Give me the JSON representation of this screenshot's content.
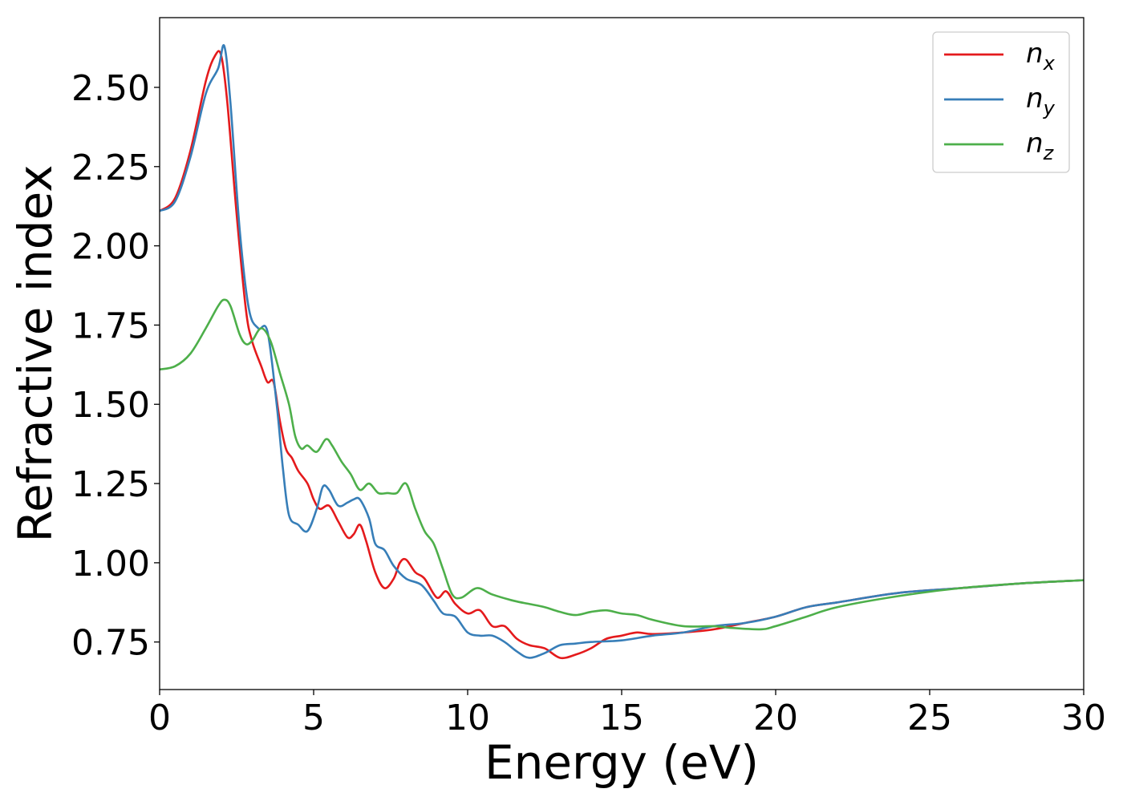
{
  "chart_data": {
    "type": "line",
    "title": "",
    "xlabel": "Energy (eV)",
    "ylabel": "Refractive index",
    "xlim": [
      0,
      30
    ],
    "ylim": [
      0.6,
      2.72
    ],
    "x_ticks": [
      0,
      5,
      10,
      15,
      20,
      25,
      30
    ],
    "y_ticks": [
      0.75,
      1.0,
      1.25,
      1.5,
      1.75,
      2.0,
      2.25,
      2.5
    ],
    "x_tick_labels": [
      "0",
      "5",
      "10",
      "15",
      "20",
      "25",
      "30"
    ],
    "y_tick_labels": [
      "0.75",
      "1.00",
      "1.25",
      "1.50",
      "1.75",
      "2.00",
      "2.25",
      "2.50"
    ],
    "grid": false,
    "legend_position": "top-right",
    "series": [
      {
        "name": "n_x",
        "legend_base": "n",
        "legend_sub": "x",
        "color": "#e41a1c",
        "points": [
          [
            0,
            2.11
          ],
          [
            0.5,
            2.15
          ],
          [
            1.0,
            2.3
          ],
          [
            1.5,
            2.52
          ],
          [
            1.8,
            2.6
          ],
          [
            2.0,
            2.6
          ],
          [
            2.2,
            2.45
          ],
          [
            2.5,
            2.1
          ],
          [
            2.8,
            1.8
          ],
          [
            3.0,
            1.7
          ],
          [
            3.3,
            1.62
          ],
          [
            3.5,
            1.57
          ],
          [
            3.7,
            1.57
          ],
          [
            3.9,
            1.45
          ],
          [
            4.1,
            1.36
          ],
          [
            4.3,
            1.33
          ],
          [
            4.5,
            1.29
          ],
          [
            4.8,
            1.25
          ],
          [
            5.0,
            1.2
          ],
          [
            5.2,
            1.17
          ],
          [
            5.5,
            1.18
          ],
          [
            5.8,
            1.13
          ],
          [
            6.1,
            1.08
          ],
          [
            6.3,
            1.09
          ],
          [
            6.5,
            1.12
          ],
          [
            6.7,
            1.07
          ],
          [
            7.0,
            0.97
          ],
          [
            7.3,
            0.92
          ],
          [
            7.6,
            0.95
          ],
          [
            7.8,
            1.0
          ],
          [
            8.0,
            1.01
          ],
          [
            8.3,
            0.97
          ],
          [
            8.6,
            0.95
          ],
          [
            9.0,
            0.89
          ],
          [
            9.3,
            0.91
          ],
          [
            9.6,
            0.87
          ],
          [
            10.0,
            0.84
          ],
          [
            10.4,
            0.85
          ],
          [
            10.8,
            0.8
          ],
          [
            11.2,
            0.8
          ],
          [
            11.6,
            0.76
          ],
          [
            12.0,
            0.74
          ],
          [
            12.5,
            0.73
          ],
          [
            13.0,
            0.7
          ],
          [
            13.5,
            0.71
          ],
          [
            14.0,
            0.73
          ],
          [
            14.5,
            0.76
          ],
          [
            15.0,
            0.77
          ],
          [
            15.5,
            0.78
          ],
          [
            16.0,
            0.775
          ],
          [
            17.0,
            0.78
          ],
          [
            18.0,
            0.79
          ],
          [
            19.0,
            0.81
          ],
          [
            20.0,
            0.83
          ],
          [
            21.0,
            0.86
          ],
          [
            22.0,
            0.875
          ],
          [
            24.0,
            0.905
          ],
          [
            26.0,
            0.92
          ],
          [
            28.0,
            0.935
          ],
          [
            30.0,
            0.945
          ]
        ]
      },
      {
        "name": "n_y",
        "legend_base": "n",
        "legend_sub": "y",
        "color": "#377eb8",
        "points": [
          [
            0,
            2.11
          ],
          [
            0.5,
            2.14
          ],
          [
            1.0,
            2.28
          ],
          [
            1.5,
            2.48
          ],
          [
            1.9,
            2.56
          ],
          [
            2.1,
            2.63
          ],
          [
            2.3,
            2.45
          ],
          [
            2.6,
            2.05
          ],
          [
            2.9,
            1.8
          ],
          [
            3.2,
            1.74
          ],
          [
            3.5,
            1.73
          ],
          [
            3.8,
            1.5
          ],
          [
            4.0,
            1.3
          ],
          [
            4.2,
            1.15
          ],
          [
            4.5,
            1.12
          ],
          [
            4.8,
            1.1
          ],
          [
            5.1,
            1.17
          ],
          [
            5.3,
            1.24
          ],
          [
            5.5,
            1.23
          ],
          [
            5.8,
            1.18
          ],
          [
            6.1,
            1.19
          ],
          [
            6.3,
            1.2
          ],
          [
            6.5,
            1.2
          ],
          [
            6.8,
            1.14
          ],
          [
            7.0,
            1.06
          ],
          [
            7.3,
            1.04
          ],
          [
            7.6,
            0.99
          ],
          [
            8.0,
            0.95
          ],
          [
            8.5,
            0.93
          ],
          [
            8.9,
            0.88
          ],
          [
            9.2,
            0.84
          ],
          [
            9.6,
            0.83
          ],
          [
            10.0,
            0.78
          ],
          [
            10.4,
            0.77
          ],
          [
            10.8,
            0.77
          ],
          [
            11.2,
            0.75
          ],
          [
            11.6,
            0.72
          ],
          [
            12.0,
            0.7
          ],
          [
            12.5,
            0.715
          ],
          [
            13.0,
            0.74
          ],
          [
            13.5,
            0.745
          ],
          [
            14.0,
            0.75
          ],
          [
            15.0,
            0.755
          ],
          [
            16.0,
            0.77
          ],
          [
            17.0,
            0.78
          ],
          [
            18.0,
            0.8
          ],
          [
            19.0,
            0.81
          ],
          [
            20.0,
            0.83
          ],
          [
            21.0,
            0.86
          ],
          [
            22.0,
            0.875
          ],
          [
            24.0,
            0.905
          ],
          [
            26.0,
            0.92
          ],
          [
            28.0,
            0.935
          ],
          [
            30.0,
            0.945
          ]
        ]
      },
      {
        "name": "n_z",
        "legend_base": "n",
        "legend_sub": "z",
        "color": "#4daf4a",
        "points": [
          [
            0,
            1.61
          ],
          [
            0.5,
            1.62
          ],
          [
            1.0,
            1.66
          ],
          [
            1.5,
            1.74
          ],
          [
            1.9,
            1.81
          ],
          [
            2.1,
            1.83
          ],
          [
            2.3,
            1.81
          ],
          [
            2.6,
            1.72
          ],
          [
            2.8,
            1.69
          ],
          [
            3.0,
            1.7
          ],
          [
            3.3,
            1.74
          ],
          [
            3.6,
            1.7
          ],
          [
            3.9,
            1.6
          ],
          [
            4.2,
            1.5
          ],
          [
            4.4,
            1.4
          ],
          [
            4.6,
            1.36
          ],
          [
            4.8,
            1.37
          ],
          [
            5.1,
            1.35
          ],
          [
            5.4,
            1.39
          ],
          [
            5.6,
            1.37
          ],
          [
            5.9,
            1.32
          ],
          [
            6.2,
            1.28
          ],
          [
            6.5,
            1.23
          ],
          [
            6.8,
            1.25
          ],
          [
            7.1,
            1.22
          ],
          [
            7.4,
            1.22
          ],
          [
            7.7,
            1.22
          ],
          [
            8.0,
            1.25
          ],
          [
            8.3,
            1.17
          ],
          [
            8.6,
            1.1
          ],
          [
            8.9,
            1.06
          ],
          [
            9.2,
            0.98
          ],
          [
            9.5,
            0.9
          ],
          [
            9.8,
            0.89
          ],
          [
            10.3,
            0.92
          ],
          [
            10.8,
            0.9
          ],
          [
            11.5,
            0.88
          ],
          [
            12.0,
            0.87
          ],
          [
            12.5,
            0.86
          ],
          [
            13.0,
            0.845
          ],
          [
            13.5,
            0.835
          ],
          [
            14.0,
            0.845
          ],
          [
            14.5,
            0.85
          ],
          [
            15.0,
            0.84
          ],
          [
            15.5,
            0.835
          ],
          [
            16.0,
            0.82
          ],
          [
            17.0,
            0.8
          ],
          [
            18.0,
            0.8
          ],
          [
            18.5,
            0.795
          ],
          [
            19.5,
            0.79
          ],
          [
            20.0,
            0.8
          ],
          [
            21.0,
            0.83
          ],
          [
            22.0,
            0.86
          ],
          [
            24.0,
            0.895
          ],
          [
            26.0,
            0.92
          ],
          [
            28.0,
            0.935
          ],
          [
            30.0,
            0.945
          ]
        ]
      }
    ]
  }
}
